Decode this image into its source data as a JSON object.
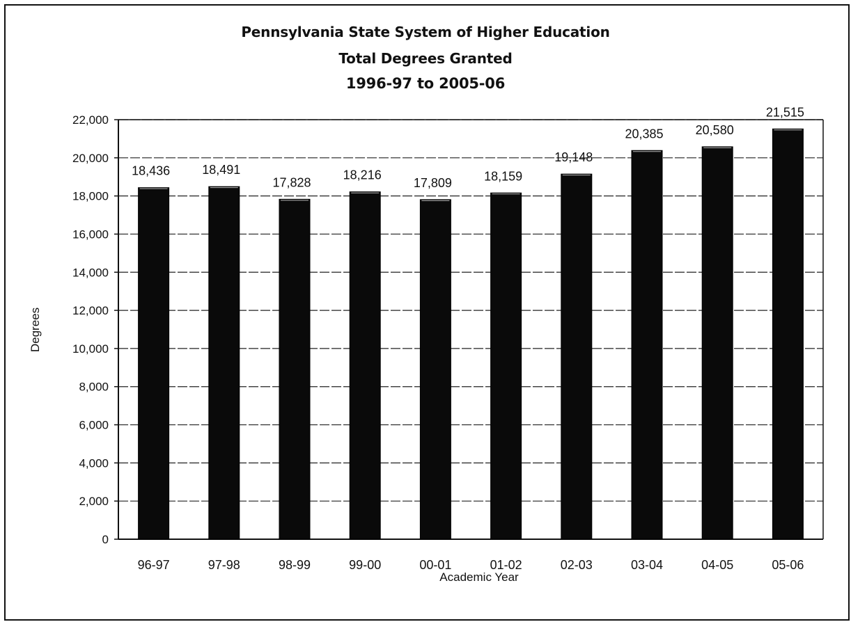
{
  "chart_data": {
    "type": "bar",
    "title": "Pennsylvania State System of Higher Education",
    "subtitle_lines": [
      "Total Degrees Granted",
      "1996-97 to 2005-06"
    ],
    "xlabel": "Academic Year",
    "ylabel": "Degrees",
    "categories": [
      "96-97",
      "97-98",
      "98-99",
      "99-00",
      "00-01",
      "01-02",
      "02-03",
      "03-04",
      "04-05",
      "05-06"
    ],
    "values": [
      18436,
      18491,
      17828,
      18216,
      17809,
      18159,
      19148,
      20385,
      20580,
      21515
    ],
    "data_labels": [
      "18,436",
      "18,491",
      "17,828",
      "18,216",
      "17,809",
      "18,159",
      "19,148",
      "20,385",
      "20,580",
      "21,515"
    ],
    "ylim": [
      0,
      22000
    ],
    "yticks": [
      0,
      2000,
      4000,
      6000,
      8000,
      10000,
      12000,
      14000,
      16000,
      18000,
      20000,
      22000
    ],
    "ytick_labels": [
      "0",
      "2,000",
      "4,000",
      "6,000",
      "8,000",
      "10,000",
      "12,000",
      "14,000",
      "16,000",
      "18,000",
      "20,000",
      "22,000"
    ],
    "grid": true,
    "legend": "none",
    "bar_color": "#0a0a0a"
  }
}
